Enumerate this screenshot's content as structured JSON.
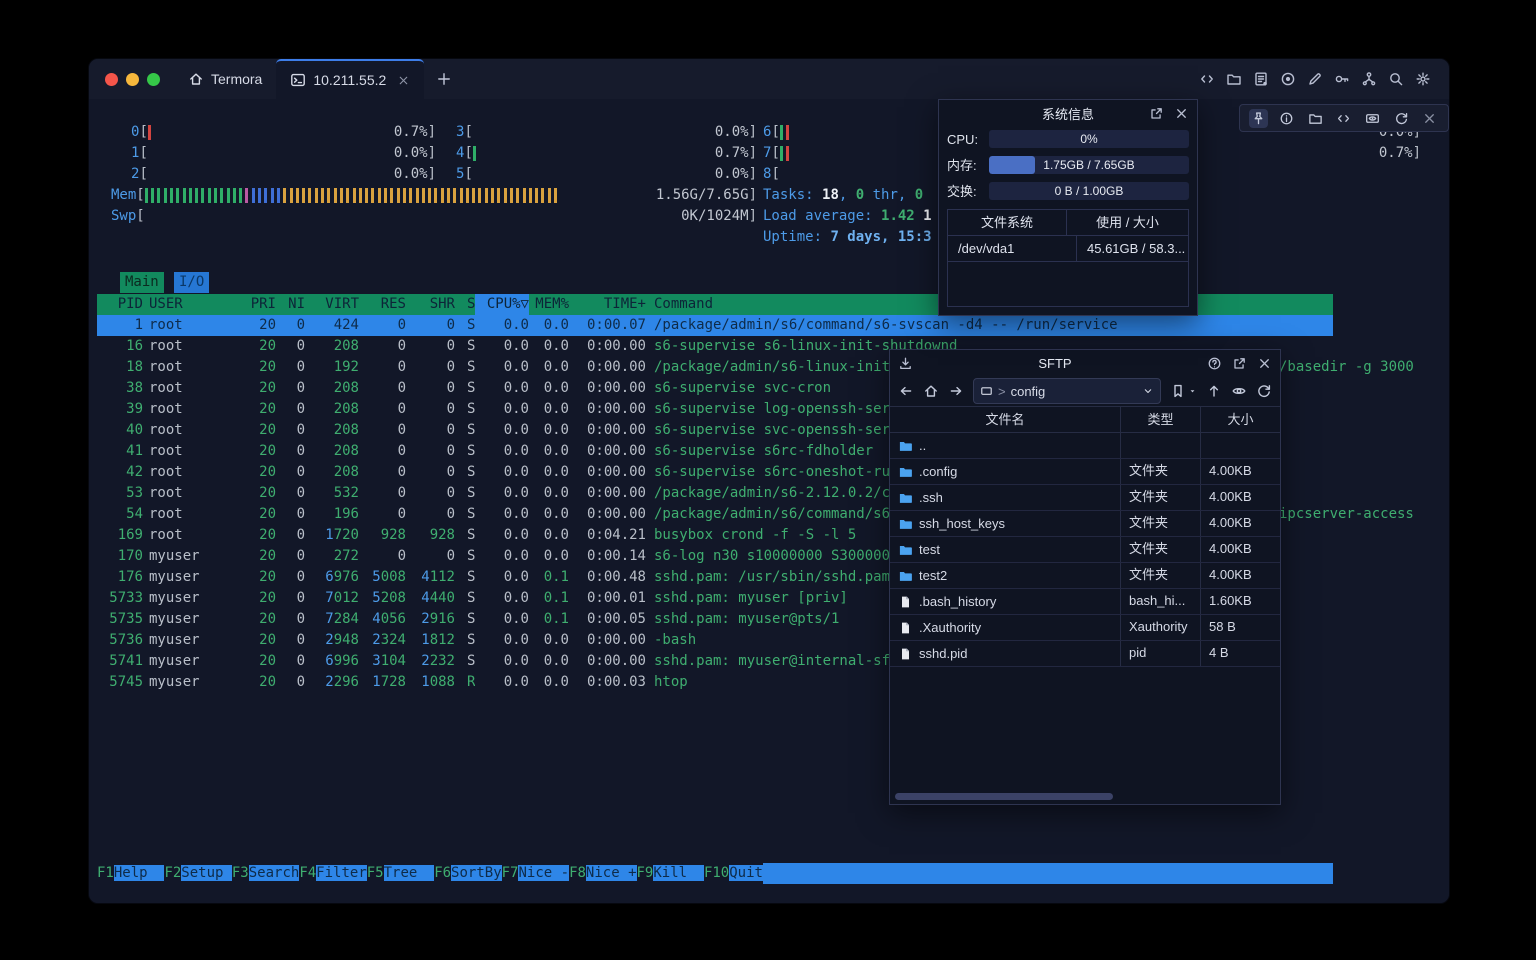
{
  "colors": {
    "accent_blue": "#2E86E8",
    "header_green": "#128A5E",
    "text_green": "#3FAE70",
    "label_cyan": "#4D9BE8",
    "bar_red": "#D24440",
    "bar_green": "#2FAE68",
    "bar_blue": "#3F6FD6",
    "bar_magenta": "#BB5AA4",
    "bar_orange": "#D9A23F",
    "mem_fill": "#4A6FC4"
  },
  "titlebar": {
    "tabs": [
      {
        "label": "Termora",
        "icon": "home"
      },
      {
        "label": "10.211.55.2",
        "icon": "terminal",
        "active": true,
        "closable": true
      }
    ],
    "new_tab": "+",
    "actions": [
      "code",
      "folder",
      "log",
      "record",
      "edit",
      "key",
      "keychain",
      "search",
      "settings"
    ]
  },
  "minibar": {
    "icons": [
      "pin",
      "info",
      "folder",
      "code",
      "gpu",
      "refresh",
      "close"
    ],
    "active_icon": "pin"
  },
  "htop": {
    "cpu_meters": [
      {
        "label": "0",
        "col": 0,
        "row": 0,
        "ticks": [
          "red"
        ],
        "value": "0.7%"
      },
      {
        "label": "1",
        "col": 0,
        "row": 1,
        "ticks": [],
        "value": "0.0%"
      },
      {
        "label": "2",
        "col": 0,
        "row": 2,
        "ticks": [],
        "value": "0.0%"
      },
      {
        "label": "3",
        "col": 1,
        "row": 0,
        "ticks": [],
        "value": "0.0%"
      },
      {
        "label": "4",
        "col": 1,
        "row": 1,
        "ticks": [
          "green"
        ],
        "value": "0.7%"
      },
      {
        "label": "5",
        "col": 1,
        "row": 2,
        "ticks": [],
        "value": "0.0%"
      },
      {
        "label": "6",
        "col": 2,
        "row": 0,
        "ticks": [
          "green",
          "red"
        ],
        "value": "0.0%"
      },
      {
        "label": "7",
        "col": 2,
        "row": 1,
        "ticks": [
          "green",
          "red"
        ],
        "value": "0.7%"
      },
      {
        "label": "8",
        "col": 2,
        "row": 2,
        "ticks": [],
        "value": "",
        "open": true
      }
    ],
    "mem_meter": {
      "label": "Mem",
      "value": "1.56G/7.65G",
      "tick_groups": [
        [
          "green",
          16
        ],
        [
          "magenta",
          1
        ],
        [
          "blue",
          5
        ],
        [
          "orange",
          44
        ]
      ]
    },
    "swp_meter": {
      "label": "Swp",
      "value": "0K/1024M"
    },
    "tasks_line": [
      [
        "Tasks: ",
        "lb"
      ],
      [
        "18",
        "wb"
      ],
      [
        ", ",
        "lb"
      ],
      [
        "0",
        "gb"
      ],
      [
        " thr, ",
        "lb"
      ],
      [
        "0",
        "gb"
      ]
    ],
    "load_line": [
      [
        "Load average: ",
        "lb"
      ],
      [
        "1.42 ",
        "gb"
      ],
      [
        "1",
        "wb"
      ]
    ],
    "uptime_line": [
      [
        "Uptime: ",
        "lb"
      ],
      [
        "7 days, 15:3",
        "ub"
      ]
    ],
    "tabs": [
      {
        "label": "Main",
        "active": true
      },
      {
        "label": "I/O",
        "active": false
      }
    ],
    "columns": [
      {
        "label": "PID",
        "align": "r"
      },
      {
        "label": "USER",
        "align": "user"
      },
      {
        "label": "PRI",
        "align": "r"
      },
      {
        "label": "NI",
        "align": "r"
      },
      {
        "label": "VIRT",
        "align": "r"
      },
      {
        "label": "RES",
        "align": "r"
      },
      {
        "label": "SHR",
        "align": "r"
      },
      {
        "label": "S",
        "align": "s"
      },
      {
        "label": "CPU%▽",
        "align": "r",
        "sort": true
      },
      {
        "label": "MEM%",
        "align": "r"
      },
      {
        "label": "TIME+",
        "align": "r"
      },
      {
        "label": "Command",
        "align": "cmd"
      }
    ],
    "processes": [
      {
        "pid": "1",
        "user": "root",
        "pri": "20",
        "ni": "0",
        "virt": "424",
        "res": "0",
        "shr": "0",
        "s": "S",
        "cpu": "0.0",
        "mem": "0.0",
        "time": "0:00.07",
        "cmd": "/package/admin/s6/command/s6-svscan -d4 -- /run/service",
        "selected": true
      },
      {
        "pid": "16",
        "user": "root",
        "pri": "20",
        "ni": "0",
        "virt": "208",
        "res": "0",
        "shr": "0",
        "s": "S",
        "cpu": "0.0",
        "mem": "0.0",
        "time": "0:00.00",
        "cmd": "s6-supervise s6-linux-init-shutdownd"
      },
      {
        "pid": "18",
        "user": "root",
        "pri": "20",
        "ni": "0",
        "virt": "192",
        "res": "0",
        "shr": "0",
        "s": "S",
        "cpu": "0.0",
        "mem": "0.0",
        "time": "0:00.00",
        "cmd": "/package/admin/s6-linux-init/"
      },
      {
        "pid": "38",
        "user": "root",
        "pri": "20",
        "ni": "0",
        "virt": "208",
        "res": "0",
        "shr": "0",
        "s": "S",
        "cpu": "0.0",
        "mem": "0.0",
        "time": "0:00.00",
        "cmd": "s6-supervise svc-cron"
      },
      {
        "pid": "39",
        "user": "root",
        "pri": "20",
        "ni": "0",
        "virt": "208",
        "res": "0",
        "shr": "0",
        "s": "S",
        "cpu": "0.0",
        "mem": "0.0",
        "time": "0:00.00",
        "cmd": "s6-supervise log-openssh-serv"
      },
      {
        "pid": "40",
        "user": "root",
        "pri": "20",
        "ni": "0",
        "virt": "208",
        "res": "0",
        "shr": "0",
        "s": "S",
        "cpu": "0.0",
        "mem": "0.0",
        "time": "0:00.00",
        "cmd": "s6-supervise svc-openssh-serv"
      },
      {
        "pid": "41",
        "user": "root",
        "pri": "20",
        "ni": "0",
        "virt": "208",
        "res": "0",
        "shr": "0",
        "s": "S",
        "cpu": "0.0",
        "mem": "0.0",
        "time": "0:00.00",
        "cmd": "s6-supervise s6rc-fdholder"
      },
      {
        "pid": "42",
        "user": "root",
        "pri": "20",
        "ni": "0",
        "virt": "208",
        "res": "0",
        "shr": "0",
        "s": "S",
        "cpu": "0.0",
        "mem": "0.0",
        "time": "0:00.00",
        "cmd": "s6-supervise s6rc-oneshot-run"
      },
      {
        "pid": "53",
        "user": "root",
        "pri": "20",
        "ni": "0",
        "virt": "532",
        "res": "0",
        "shr": "0",
        "s": "S",
        "cpu": "0.0",
        "mem": "0.0",
        "time": "0:00.00",
        "cmd": "/package/admin/s6-2.12.0.2/co"
      },
      {
        "pid": "54",
        "user": "root",
        "pri": "20",
        "ni": "0",
        "virt": "196",
        "res": "0",
        "shr": "0",
        "s": "S",
        "cpu": "0.0",
        "mem": "0.0",
        "time": "0:00.00",
        "cmd": "/package/admin/s6/command/s6-"
      },
      {
        "pid": "169",
        "user": "root",
        "pri": "20",
        "ni": "0",
        "virt": "1720",
        "res": "928",
        "shr": "928",
        "s": "S",
        "cpu": "0.0",
        "mem": "0.0",
        "time": "0:04.21",
        "cmd": "busybox crond -f -S -l 5"
      },
      {
        "pid": "170",
        "user": "myuser",
        "pri": "20",
        "ni": "0",
        "virt": "272",
        "res": "0",
        "shr": "0",
        "s": "S",
        "cpu": "0.0",
        "mem": "0.0",
        "time": "0:00.14",
        "cmd": "s6-log n30 s10000000 S3000000"
      },
      {
        "pid": "176",
        "user": "myuser",
        "pri": "20",
        "ni": "0",
        "virt": "6976",
        "res": "5008",
        "shr": "4112",
        "s": "S",
        "cpu": "0.0",
        "mem": "0.1",
        "time": "0:00.48",
        "cmd": "sshd.pam: /usr/sbin/sshd.pam"
      },
      {
        "pid": "5733",
        "user": "myuser",
        "pri": "20",
        "ni": "0",
        "virt": "7012",
        "res": "5208",
        "shr": "4440",
        "s": "S",
        "cpu": "0.0",
        "mem": "0.1",
        "time": "0:00.01",
        "cmd": "sshd.pam: myuser [priv]"
      },
      {
        "pid": "5735",
        "user": "myuser",
        "pri": "20",
        "ni": "0",
        "virt": "7284",
        "res": "4056",
        "shr": "2916",
        "s": "S",
        "cpu": "0.0",
        "mem": "0.1",
        "time": "0:00.05",
        "cmd": "sshd.pam: myuser@pts/1"
      },
      {
        "pid": "5736",
        "user": "myuser",
        "pri": "20",
        "ni": "0",
        "virt": "2948",
        "res": "2324",
        "shr": "1812",
        "s": "S",
        "cpu": "0.0",
        "mem": "0.0",
        "time": "0:00.00",
        "cmd": "-bash"
      },
      {
        "pid": "5741",
        "user": "myuser",
        "pri": "20",
        "ni": "0",
        "virt": "6996",
        "res": "3104",
        "shr": "2232",
        "s": "S",
        "cpu": "0.0",
        "mem": "0.0",
        "time": "0:00.00",
        "cmd": "sshd.pam: myuser@internal-sft"
      },
      {
        "pid": "5745",
        "user": "myuser",
        "pri": "20",
        "ni": "0",
        "virt": "2296",
        "res": "1728",
        "shr": "1088",
        "s": "R",
        "cpu": "0.0",
        "mem": "0.0",
        "time": "0:00.03",
        "cmd": "htop"
      }
    ],
    "overflow_fragments": [
      {
        "text": "/basedir -g 3000",
        "row_index": 2
      },
      {
        "text": "ipcserver-access",
        "row_index": 9
      }
    ],
    "fkeys": [
      {
        "key": "F1",
        "label": "Help  "
      },
      {
        "key": "F2",
        "label": "Setup "
      },
      {
        "key": "F3",
        "label": "Search"
      },
      {
        "key": "F4",
        "label": "Filter"
      },
      {
        "key": "F5",
        "label": "Tree  "
      },
      {
        "key": "F6",
        "label": "SortBy"
      },
      {
        "key": "F7",
        "label": "Nice -"
      },
      {
        "key": "F8",
        "label": "Nice +"
      },
      {
        "key": "F9",
        "label": "Kill  "
      },
      {
        "key": "F10",
        "label": "Quit"
      }
    ]
  },
  "sysinfo": {
    "title": "系统信息",
    "window_icons": [
      "external",
      "close"
    ],
    "metrics": [
      {
        "label": "CPU:",
        "value": "0%",
        "fill_pct": 0
      },
      {
        "label": "内存:",
        "value": "1.75GB / 7.65GB",
        "fill_pct": 23
      },
      {
        "label": "交换:",
        "value": "0 B / 1.00GB",
        "fill_pct": 0
      }
    ],
    "fs_table": {
      "headers": [
        "文件系统",
        "使用 / 大小"
      ],
      "rows": [
        [
          "/dev/vda1",
          "45.61GB / 58.3..."
        ]
      ]
    }
  },
  "sftp": {
    "title": "SFTP",
    "window_icons": [
      "help",
      "external",
      "close"
    ],
    "toolbar": {
      "nav": [
        "back",
        "home",
        "forward"
      ],
      "breadcrumb": {
        "icon": "monitor",
        "separator": ">",
        "path": "config",
        "dropdown": "chevron-down"
      },
      "actions": [
        "bookmark",
        "caret",
        "upload",
        "eye",
        "refresh"
      ]
    },
    "columns": [
      "文件名",
      "类型",
      "大小"
    ],
    "files": [
      {
        "name": "..",
        "kind": "folder",
        "type": "",
        "size": ""
      },
      {
        "name": ".config",
        "kind": "folder",
        "type": "文件夹",
        "size": "4.00KB"
      },
      {
        "name": ".ssh",
        "kind": "folder",
        "type": "文件夹",
        "size": "4.00KB"
      },
      {
        "name": "ssh_host_keys",
        "kind": "folder",
        "type": "文件夹",
        "size": "4.00KB"
      },
      {
        "name": "test",
        "kind": "folder",
        "type": "文件夹",
        "size": "4.00KB"
      },
      {
        "name": "test2",
        "kind": "folder",
        "type": "文件夹",
        "size": "4.00KB"
      },
      {
        "name": ".bash_history",
        "kind": "file",
        "type": "bash_hi...",
        "size": "1.60KB"
      },
      {
        "name": ".Xauthority",
        "kind": "file",
        "type": "Xauthority",
        "size": "58 B"
      },
      {
        "name": "sshd.pid",
        "kind": "file",
        "type": "pid",
        "size": "4 B"
      }
    ]
  }
}
